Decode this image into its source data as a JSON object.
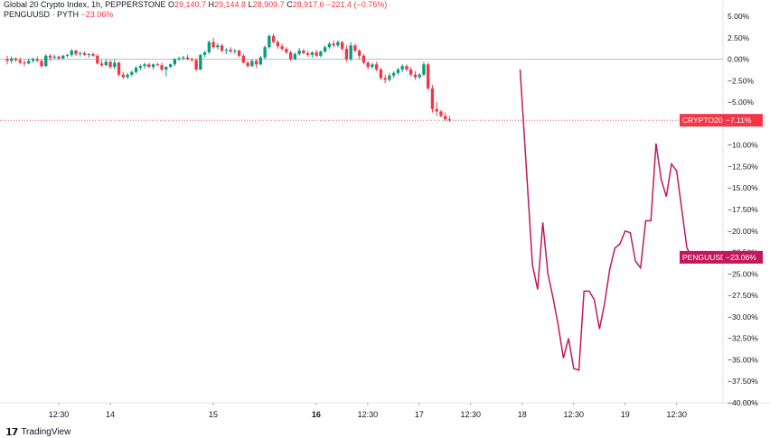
{
  "legend": {
    "line1_name": "Global 20 Crypto Index, 1h, PEPPERSTONE",
    "line1_o_label": "O",
    "line1_o": "29,140.7",
    "line1_h_label": "H",
    "line1_h": "29,144.8",
    "line1_l_label": "L",
    "line1_l": "28,909.7",
    "line1_c_label": "C",
    "line1_c": "28,917.6",
    "line1_chg": "−221.4 (−0.76%)",
    "line2_name": "PENGUUSD · PYTH",
    "line2_chg": "−23.06%"
  },
  "footer": {
    "brand": "TradingView"
  },
  "colors": {
    "up": "#089981",
    "down": "#f23645",
    "pengu": "#c2185b",
    "crypto_label": "#f23645"
  },
  "chart_data": {
    "type": "line",
    "y_unit": "%",
    "ylim": [
      -40,
      5
    ],
    "yticks": [
      "5.00%",
      "2.50%",
      "0.00%",
      "−2.50%",
      "−5.00%",
      "−7.50%",
      "−10.00%",
      "−12.50%",
      "−15.00%",
      "−17.50%",
      "−20.00%",
      "−22.50%",
      "−25.00%",
      "−27.50%",
      "−30.00%",
      "−32.50%",
      "−35.00%",
      "−37.50%",
      "−40.00%"
    ],
    "ytick_values": [
      5,
      2.5,
      0,
      -2.5,
      -5,
      -7.5,
      -10,
      -12.5,
      -15,
      -17.5,
      -20,
      -22.5,
      -25,
      -27.5,
      -30,
      -32.5,
      -35,
      -37.5,
      -40
    ],
    "x_labels": [
      "12:30",
      "14",
      "15",
      "16",
      "12:30",
      "17",
      "12:30",
      "18",
      "12:30",
      "19",
      "12:30"
    ],
    "x_label_bold": [
      false,
      false,
      false,
      true,
      false,
      false,
      false,
      false,
      false,
      false,
      false
    ],
    "x_label_t": [
      0.5,
      1.0,
      2.0,
      3.0,
      3.5,
      4.0,
      4.5,
      5.0,
      5.5,
      6.0,
      6.5
    ],
    "series": [
      {
        "name": "CRYPTO20",
        "style": "candlestick",
        "last_label": "−7.11%",
        "last_value": -7.11,
        "t_start": 0.0,
        "t_step": 0.0417,
        "candles": [
          [
            0,
            0.4,
            -0.6,
            -0.2
          ],
          [
            -0.2,
            0.3,
            -0.5,
            0.1
          ],
          [
            0.1,
            0.2,
            -0.3,
            -0.1
          ],
          [
            -0.1,
            0.2,
            -0.6,
            -0.4
          ],
          [
            -0.4,
            -0.1,
            -0.8,
            -0.5
          ],
          [
            -0.5,
            0.1,
            -0.6,
            -0.2
          ],
          [
            -0.2,
            0.2,
            -0.4,
            0.0
          ],
          [
            0.0,
            0.3,
            -0.3,
            -0.2
          ],
          [
            -0.2,
            0.0,
            -1.0,
            -0.8
          ],
          [
            -0.8,
            0.6,
            -0.9,
            0.4
          ],
          [
            0.4,
            0.6,
            -0.2,
            0.2
          ],
          [
            0.2,
            0.5,
            0.0,
            0.3
          ],
          [
            0.3,
            0.4,
            -0.1,
            0.1
          ],
          [
            0.1,
            0.5,
            0.0,
            0.4
          ],
          [
            0.4,
            0.6,
            0.2,
            0.5
          ],
          [
            0.5,
            1.2,
            0.3,
            1.0
          ],
          [
            1.0,
            1.1,
            0.4,
            0.6
          ],
          [
            0.6,
            0.9,
            0.3,
            0.7
          ],
          [
            0.7,
            0.9,
            0.4,
            0.5
          ],
          [
            0.5,
            0.7,
            0.2,
            0.6
          ],
          [
            0.6,
            0.8,
            0.3,
            0.4
          ],
          [
            0.4,
            0.6,
            -0.6,
            -0.5
          ],
          [
            -0.5,
            -0.1,
            -0.9,
            -0.7
          ],
          [
            -0.7,
            0.0,
            -0.8,
            -0.3
          ],
          [
            -0.3,
            -0.1,
            -1.1,
            -0.9
          ],
          [
            -0.9,
            0.0,
            -1.2,
            -0.4
          ],
          [
            -0.4,
            -0.3,
            -2.0,
            -1.8
          ],
          [
            -1.8,
            -1.5,
            -2.3,
            -2.1
          ],
          [
            -2.1,
            -1.6,
            -2.3,
            -1.8
          ],
          [
            -1.8,
            -1.3,
            -2.0,
            -1.5
          ],
          [
            -1.5,
            -0.8,
            -1.7,
            -1.0
          ],
          [
            -1.0,
            -0.6,
            -1.3,
            -0.8
          ],
          [
            -0.8,
            -0.4,
            -1.1,
            -0.6
          ],
          [
            -0.6,
            -0.4,
            -1.0,
            -0.9
          ],
          [
            -0.9,
            -0.5,
            -1.2,
            -0.6
          ],
          [
            -0.6,
            -0.4,
            -0.8,
            -0.7
          ],
          [
            -0.7,
            -0.4,
            -1.4,
            -1.2
          ],
          [
            -1.2,
            -0.8,
            -2.0,
            -0.9
          ],
          [
            -0.9,
            -0.5,
            -1.0,
            -0.6
          ],
          [
            -0.6,
            0.1,
            -0.8,
            0.0
          ],
          [
            0.0,
            0.3,
            -0.2,
            0.1
          ],
          [
            0.1,
            0.4,
            -0.1,
            0.2
          ],
          [
            0.2,
            0.5,
            -0.1,
            0.0
          ],
          [
            0.0,
            0.2,
            -0.3,
            -0.1
          ],
          [
            -0.1,
            0.1,
            -1.4,
            -1.2
          ],
          [
            -1.2,
            0.6,
            -1.3,
            0.5
          ],
          [
            0.5,
            1.0,
            0.2,
            0.8
          ],
          [
            0.8,
            2.2,
            0.6,
            2.0
          ],
          [
            2.0,
            2.5,
            1.2,
            1.4
          ],
          [
            1.4,
            1.9,
            1.1,
            1.6
          ],
          [
            1.6,
            1.8,
            0.8,
            1.0
          ],
          [
            1.0,
            1.3,
            0.6,
            1.1
          ],
          [
            1.1,
            1.4,
            0.7,
            0.9
          ],
          [
            0.9,
            1.2,
            0.6,
            1.0
          ],
          [
            1.0,
            1.1,
            0.2,
            0.4
          ],
          [
            0.4,
            0.6,
            -0.5,
            -0.4
          ],
          [
            -0.4,
            -0.2,
            -1.0,
            -0.8
          ],
          [
            -0.8,
            0.0,
            -0.9,
            -0.2
          ],
          [
            -0.2,
            0.0,
            -1.0,
            -0.6
          ],
          [
            -0.6,
            0.4,
            -0.7,
            0.2
          ],
          [
            0.2,
            1.6,
            0.0,
            1.4
          ],
          [
            1.4,
            2.9,
            1.2,
            2.7
          ],
          [
            2.7,
            3.0,
            1.8,
            2.0
          ],
          [
            2.0,
            2.2,
            1.2,
            1.5
          ],
          [
            1.5,
            1.8,
            1.0,
            1.2
          ],
          [
            1.2,
            1.4,
            0.6,
            0.8
          ],
          [
            0.8,
            1.0,
            -0.2,
            0.0
          ],
          [
            0.0,
            0.8,
            -0.1,
            0.6
          ],
          [
            0.6,
            1.3,
            0.4,
            1.0
          ],
          [
            1.0,
            1.2,
            0.6,
            0.7
          ],
          [
            0.7,
            1.0,
            0.3,
            0.5
          ],
          [
            0.5,
            0.9,
            0.2,
            0.8
          ],
          [
            0.8,
            1.1,
            0.3,
            0.4
          ],
          [
            0.4,
            1.0,
            0.2,
            0.9
          ],
          [
            0.9,
            1.6,
            0.7,
            1.4
          ],
          [
            1.4,
            2.0,
            1.2,
            1.8
          ],
          [
            1.8,
            2.2,
            1.4,
            1.6
          ],
          [
            1.6,
            2.2,
            1.4,
            2.0
          ],
          [
            2.0,
            2.1,
            1.0,
            1.2
          ],
          [
            1.2,
            1.6,
            -0.3,
            0.0
          ],
          [
            0.0,
            2.0,
            -0.2,
            1.6
          ],
          [
            1.6,
            1.8,
            0.8,
            1.0
          ],
          [
            1.0,
            1.2,
            0.0,
            0.4
          ],
          [
            0.4,
            0.6,
            -0.6,
            -0.4
          ],
          [
            -0.4,
            -0.2,
            -1.2,
            -0.9
          ],
          [
            -0.9,
            -0.4,
            -1.1,
            -0.6
          ],
          [
            -0.6,
            -0.3,
            -1.4,
            -1.2
          ],
          [
            -1.2,
            -1.0,
            -2.4,
            -2.2
          ],
          [
            -2.2,
            -1.8,
            -2.8,
            -2.4
          ],
          [
            -2.4,
            -1.6,
            -2.6,
            -1.9
          ],
          [
            -1.9,
            -1.4,
            -2.2,
            -1.6
          ],
          [
            -1.6,
            -1.0,
            -1.8,
            -1.2
          ],
          [
            -1.2,
            -0.6,
            -1.5,
            -0.8
          ],
          [
            -0.8,
            -0.6,
            -1.4,
            -1.2
          ],
          [
            -1.2,
            -0.9,
            -2.0,
            -1.8
          ],
          [
            -1.8,
            -1.4,
            -2.4,
            -2.1
          ],
          [
            -2.1,
            -1.6,
            -2.3,
            -1.8
          ],
          [
            -1.8,
            -0.3,
            -2.0,
            -0.6
          ],
          [
            -0.6,
            -0.4,
            -3.6,
            -3.4
          ],
          [
            -3.4,
            -3.0,
            -6.2,
            -5.8
          ],
          [
            -5.8,
            -5.0,
            -6.6,
            -6.1
          ],
          [
            -6.1,
            -5.9,
            -6.8,
            -6.6
          ],
          [
            -6.6,
            -6.2,
            -7.2,
            -7.0
          ],
          [
            -7.0,
            -6.6,
            -7.3,
            -7.11
          ]
        ]
      },
      {
        "name": "PENGUUSD",
        "style": "line",
        "last_label": "−23.06%",
        "last_value": -23.06,
        "points": [
          [
            4.98,
            -1.2
          ],
          [
            5.1,
            -24.0
          ],
          [
            5.15,
            -26.8
          ],
          [
            5.2,
            -19.0
          ],
          [
            5.25,
            -25.0
          ],
          [
            5.3,
            -27.8
          ],
          [
            5.35,
            -31.0
          ],
          [
            5.4,
            -34.8
          ],
          [
            5.45,
            -32.5
          ],
          [
            5.5,
            -36.0
          ],
          [
            5.55,
            -36.2
          ],
          [
            5.6,
            -27.0
          ],
          [
            5.65,
            -27.0
          ],
          [
            5.7,
            -28.0
          ],
          [
            5.75,
            -31.4
          ],
          [
            5.8,
            -28.5
          ],
          [
            5.85,
            -24.5
          ],
          [
            5.9,
            -22.0
          ],
          [
            5.95,
            -21.5
          ],
          [
            6.0,
            -20.0
          ],
          [
            6.05,
            -20.2
          ],
          [
            6.1,
            -23.5
          ],
          [
            6.15,
            -24.3
          ],
          [
            6.2,
            -18.8
          ],
          [
            6.25,
            -18.8
          ],
          [
            6.3,
            -9.8
          ],
          [
            6.35,
            -14.0
          ],
          [
            6.4,
            -16.0
          ],
          [
            6.45,
            -12.2
          ],
          [
            6.5,
            -13.0
          ],
          [
            6.55,
            -17.5
          ],
          [
            6.6,
            -22.0
          ],
          [
            6.65,
            -23.06
          ]
        ]
      }
    ]
  }
}
